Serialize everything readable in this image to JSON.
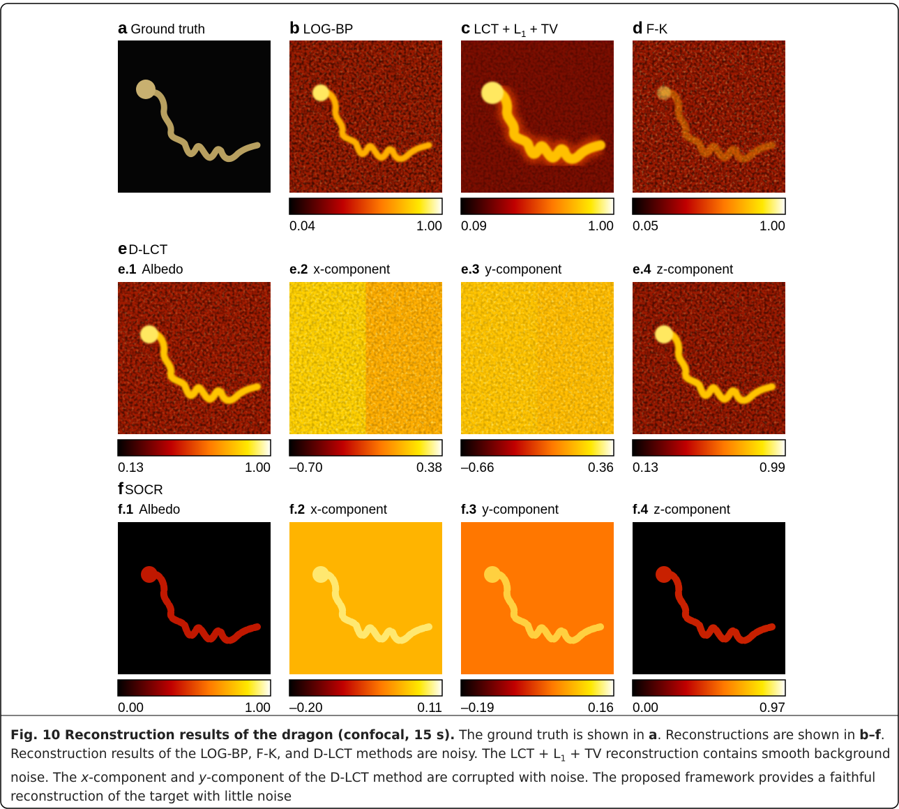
{
  "panels": [
    {
      "letter": "a",
      "title": "Ground truth"
    },
    {
      "letter": "b",
      "title": "LOG-BP",
      "colorbar": [
        "0.04",
        "1.00"
      ]
    },
    {
      "letter": "c",
      "title": "LCT + L",
      "title_sub": "1",
      "title_rest": " + TV",
      "colorbar": [
        "0.09",
        "1.00"
      ]
    },
    {
      "letter": "d",
      "title": "F-K",
      "colorbar": [
        "0.05",
        "1.00"
      ]
    }
  ],
  "sections": [
    {
      "letter": "e",
      "title": "D-LCT",
      "panels": [
        {
          "label": "e.1",
          "title": "Albedo",
          "colorbar": [
            "0.13",
            "1.00"
          ]
        },
        {
          "label": "e.2",
          "title": "x-component",
          "colorbar": [
            "–0.70",
            "0.38"
          ]
        },
        {
          "label": "e.3",
          "title": "y-component",
          "colorbar": [
            "–0.66",
            "0.36"
          ]
        },
        {
          "label": "e.4",
          "title": "z-component",
          "colorbar": [
            "0.13",
            "0.99"
          ]
        }
      ]
    },
    {
      "letter": "f",
      "title": "SOCR",
      "panels": [
        {
          "label": "f.1",
          "title": "Albedo",
          "colorbar": [
            "0.00",
            "1.00"
          ]
        },
        {
          "label": "f.2",
          "title": "x-component",
          "colorbar": [
            "–0.20",
            "0.11"
          ]
        },
        {
          "label": "f.3",
          "title": "y-component",
          "colorbar": [
            "–0.19",
            "0.16"
          ]
        },
        {
          "label": "f.4",
          "title": "z-component",
          "colorbar": [
            "0.00",
            "0.97"
          ]
        }
      ]
    }
  ],
  "caption": {
    "label": "Fig. 10 Reconstruction results of the dragon (confocal, 15 s).",
    "runs": [
      " The ground truth is shown in ",
      "a",
      ". Reconstructions are shown in ",
      "b–f",
      ". Reconstruction results of the LOG-BP, F-K, and D-LCT methods are noisy. The LCT + L",
      "1",
      " + TV reconstruction contains smooth background noise. The ",
      "x",
      "-component and ",
      "y",
      "-component of the D-LCT method are corrupted with noise. The proposed framework provides a faithful reconstruction of the target with little noise"
    ]
  }
}
